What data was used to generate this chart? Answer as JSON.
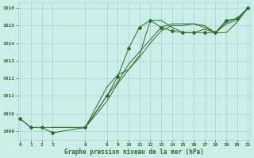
{
  "title": "Graphe pression niveau de la mer (hPa)",
  "background_color": "#cceee8",
  "grid_color": "#aacccc",
  "line_color": "#2d6a2d",
  "xlim": [
    -0.2,
    21.2
  ],
  "ylim": [
    1008.5,
    1016.3
  ],
  "xticks": [
    0,
    1,
    2,
    3,
    6,
    8,
    9,
    10,
    11,
    12,
    13,
    14,
    15,
    16,
    17,
    18,
    19,
    20,
    21
  ],
  "yticks": [
    1009,
    1010,
    1011,
    1012,
    1013,
    1014,
    1015,
    1016
  ],
  "series": [
    {
      "x": [
        0,
        1,
        2,
        3,
        6,
        8,
        9,
        10,
        11,
        12,
        13,
        14,
        15,
        16,
        17,
        18,
        19,
        20,
        21
      ],
      "y": [
        1009.7,
        1009.2,
        1009.2,
        1008.9,
        1009.2,
        1011.0,
        1012.1,
        1013.7,
        1014.9,
        1015.3,
        1014.9,
        1014.7,
        1014.6,
        1014.6,
        1014.6,
        1014.6,
        1015.3,
        1015.4,
        1016.0
      ],
      "has_markers": true
    },
    {
      "x": [
        0,
        1,
        2,
        3,
        6,
        8,
        9,
        10,
        11,
        12,
        13,
        14,
        15,
        16,
        17,
        18,
        19,
        20,
        21
      ],
      "y": [
        1009.7,
        1009.2,
        1009.2,
        1009.2,
        1009.2,
        1011.5,
        1012.2,
        1012.5,
        1013.3,
        1015.3,
        1015.3,
        1014.9,
        1014.6,
        1014.6,
        1014.8,
        1014.6,
        1014.6,
        1015.2,
        1016.0
      ],
      "has_markers": false
    },
    {
      "x": [
        3,
        6,
        8,
        9,
        10,
        11,
        12,
        13,
        14,
        15,
        16,
        17,
        18,
        19,
        20,
        21
      ],
      "y": [
        1009.2,
        1009.2,
        1010.7,
        1011.7,
        1012.5,
        1013.2,
        1014.0,
        1014.7,
        1015.0,
        1015.0,
        1015.1,
        1015.0,
        1014.6,
        1015.2,
        1015.4,
        1016.0
      ],
      "has_markers": false
    },
    {
      "x": [
        3,
        6,
        8,
        9,
        10,
        11,
        12,
        13,
        14,
        15,
        16,
        17,
        18,
        19,
        20,
        21
      ],
      "y": [
        1009.2,
        1009.2,
        1011.0,
        1011.8,
        1012.8,
        1013.5,
        1014.2,
        1014.9,
        1015.1,
        1015.1,
        1015.1,
        1014.9,
        1014.6,
        1015.1,
        1015.3,
        1016.0
      ],
      "has_markers": false
    }
  ],
  "marker_x": [
    0,
    1,
    2,
    3,
    6,
    8,
    9,
    10,
    11,
    12,
    13,
    14,
    15,
    16,
    17,
    18,
    19,
    20,
    21
  ],
  "marker_y": [
    1009.7,
    1009.2,
    1009.2,
    1008.9,
    1009.2,
    1011.0,
    1012.1,
    1013.7,
    1014.9,
    1015.3,
    1014.9,
    1014.7,
    1014.6,
    1014.6,
    1014.6,
    1014.6,
    1015.3,
    1015.4,
    1016.0
  ]
}
